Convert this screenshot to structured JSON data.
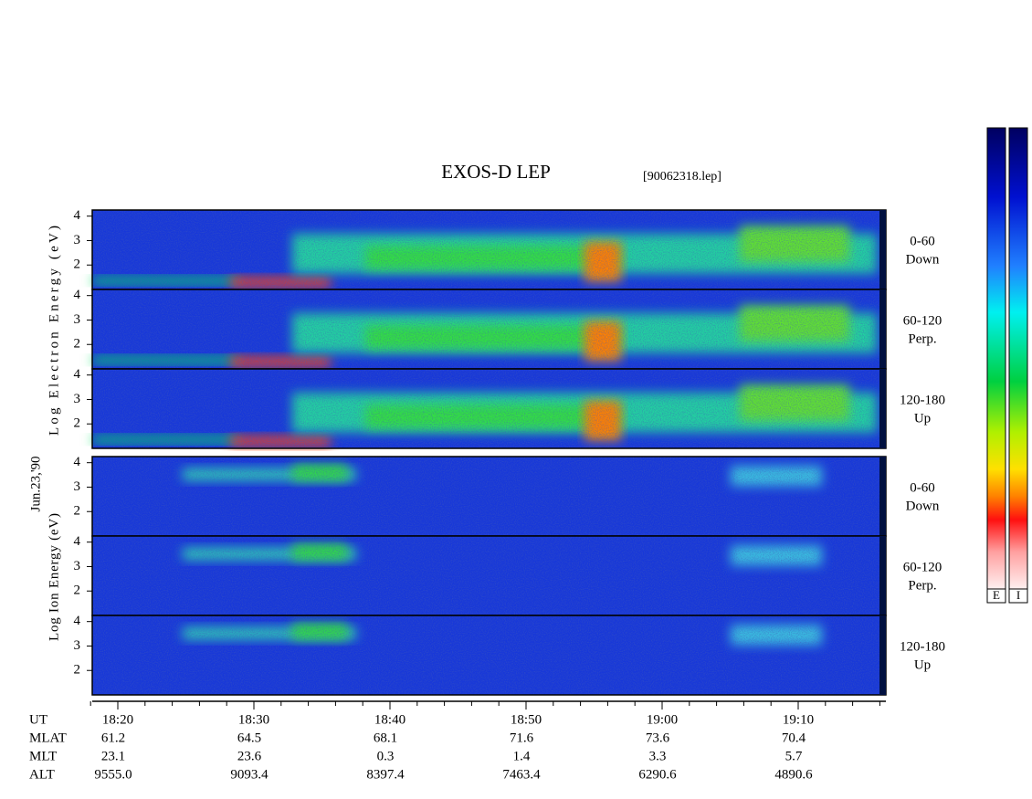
{
  "header": {
    "title": "EXOS-D LEP",
    "file": "[90062318.lep]",
    "date": "Jun.23,'90"
  },
  "electron": {
    "axis_label": "Log Electron Energy (eV)",
    "ylim": [
      1,
      4.25
    ],
    "yticks": [
      2,
      3,
      4
    ],
    "panels": [
      {
        "range": "0-60",
        "direction": "Down"
      },
      {
        "range": "60-120",
        "direction": "Perp."
      },
      {
        "range": "120-180",
        "direction": "Up"
      }
    ]
  },
  "ion": {
    "axis_label": "Log Ion Energy (eV)",
    "ylim": [
      1,
      4.25
    ],
    "yticks": [
      2,
      3,
      4
    ],
    "panels": [
      {
        "range": "0-60",
        "direction": "Down"
      },
      {
        "range": "60-120",
        "direction": "Perp."
      },
      {
        "range": "120-180",
        "direction": "Up"
      }
    ]
  },
  "time_axis": {
    "ticks": [
      "18:20",
      "18:30",
      "18:40",
      "18:50",
      "19:00",
      "19:10"
    ]
  },
  "ephemeris": [
    {
      "label": "UT",
      "values": []
    },
    {
      "label": "MLAT",
      "values": [
        "61.2",
        "64.5",
        "68.1",
        "71.6",
        "73.6",
        "70.4"
      ]
    },
    {
      "label": "MLT",
      "values": [
        "23.1",
        "23.6",
        "0.3",
        "1.4",
        "3.3",
        "5.7"
      ]
    },
    {
      "label": "ALT",
      "values": [
        "9555.0",
        "9093.4",
        "8397.4",
        "7463.4",
        "6290.6",
        "4890.6"
      ]
    }
  ],
  "colorbars": [
    "E",
    "I"
  ]
}
